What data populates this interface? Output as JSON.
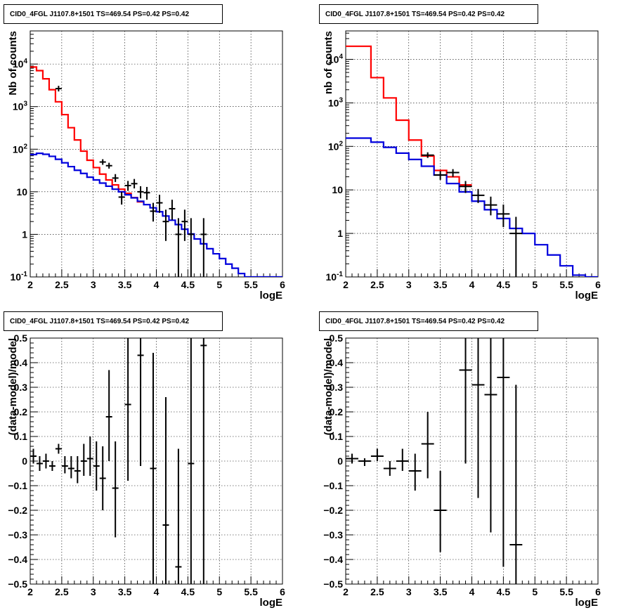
{
  "colors": {
    "model_total": "#ff0000",
    "model_background": "#0000dd",
    "data": "#000000",
    "grid": "#000000"
  },
  "chart_data": [
    {
      "type": "histogram",
      "title": "CID0_4FGL J1107.8+1501 TS=469.54 PS=0.42 PS=0.42",
      "xlabel": "logE",
      "ylabel": "Nb of counts",
      "xlim": [
        2,
        6
      ],
      "ylim": [
        0.1,
        60000
      ],
      "yscale": "log",
      "grid": true,
      "xticks": [
        "2",
        "2.5",
        "3",
        "3.5",
        "4",
        "4.5",
        "5",
        "5.5",
        "6"
      ],
      "yticks": [
        {
          "exp": "-1",
          "base": "10"
        },
        {
          "text": "1"
        },
        {
          "text": "10"
        },
        {
          "exp": "2",
          "base": "10"
        },
        {
          "exp": "3",
          "base": "10"
        },
        {
          "exp": "4",
          "base": "10"
        }
      ],
      "bin_width": 0.1,
      "series": [
        {
          "kind": "step",
          "color": "red",
          "x_edges_start": 2.0,
          "values": [
            8500,
            7000,
            4500,
            2500,
            1300,
            650,
            320,
            165,
            90,
            55,
            37,
            26,
            19,
            14.5,
            11.5,
            9.2,
            7.3,
            5.8
          ]
        },
        {
          "kind": "step",
          "color": "blue",
          "x_edges_start": 2.0,
          "values": [
            75,
            80,
            76,
            68,
            58,
            48,
            39,
            32,
            27,
            22,
            19,
            16,
            13.5,
            11.5,
            10,
            8.5,
            7.2,
            6,
            5,
            4.2,
            3.4,
            2.7,
            2.15,
            1.7,
            1.32,
            1.02,
            0.78,
            0.6,
            0.46,
            0.35,
            0.27,
            0.2,
            0.16,
            0.12,
            0.1,
            0.1,
            0.1,
            0.1,
            0.1,
            0.1
          ]
        },
        {
          "kind": "points",
          "color": "black",
          "points": [
            {
              "x": 2.45,
              "y": 2650
            },
            {
              "x": 3.15,
              "y": 50,
              "lo": 43,
              "hi": 57
            },
            {
              "x": 3.25,
              "y": 41,
              "lo": 35,
              "hi": 48
            },
            {
              "x": 3.35,
              "y": 21,
              "lo": 17,
              "hi": 26
            },
            {
              "x": 3.45,
              "y": 7.5,
              "lo": 5,
              "hi": 10
            },
            {
              "x": 3.55,
              "y": 14,
              "lo": 10.5,
              "hi": 18
            },
            {
              "x": 3.65,
              "y": 15.5,
              "lo": 12,
              "hi": 20
            },
            {
              "x": 3.75,
              "y": 10,
              "lo": 7,
              "hi": 13.5
            },
            {
              "x": 3.85,
              "y": 9.5,
              "lo": 6.5,
              "hi": 13
            },
            {
              "x": 3.95,
              "y": 3.5,
              "lo": 2,
              "hi": 5.5
            },
            {
              "x": 4.05,
              "y": 5.5,
              "lo": 3.2,
              "hi": 8.5
            },
            {
              "x": 4.15,
              "y": 2,
              "lo": 0.7,
              "hi": 3.8
            },
            {
              "x": 4.25,
              "y": 4,
              "lo": 2.2,
              "hi": 6.5
            },
            {
              "x": 4.35,
              "y": 1,
              "lo": 0.1,
              "hi": 2.4
            },
            {
              "x": 4.45,
              "y": 2,
              "lo": 0.7,
              "hi": 3.8
            },
            {
              "x": 4.55,
              "y": 1,
              "lo": 0.1,
              "hi": 2.4
            },
            {
              "x": 4.75,
              "y": 1,
              "lo": 0.1,
              "hi": 2.4
            }
          ]
        }
      ]
    },
    {
      "type": "histogram",
      "title": "CID0_4FGL J1107.8+1501 TS=469.54 PS=0.42 PS=0.42",
      "xlabel": "logE",
      "ylabel": "nb of counts",
      "xlim": [
        2,
        6
      ],
      "ylim": [
        0.1,
        45000
      ],
      "yscale": "log",
      "grid": true,
      "xticks": [
        "2",
        "2.5",
        "3",
        "3.5",
        "4",
        "4.5",
        "5",
        "5.5",
        "6"
      ],
      "yticks": [
        {
          "exp": "-1",
          "base": "10"
        },
        {
          "text": "1"
        },
        {
          "text": "10"
        },
        {
          "exp": "2",
          "base": "10"
        },
        {
          "exp": "3",
          "base": "10"
        },
        {
          "exp": "4",
          "base": "10"
        }
      ],
      "bin_width": 0.2,
      "series": [
        {
          "kind": "step",
          "color": "red",
          "x_edges_start": 2.0,
          "values": [
            20000,
            20000,
            3800,
            1300,
            400,
            140,
            60,
            28,
            20,
            13
          ]
        },
        {
          "kind": "step",
          "color": "blue",
          "x_edges_start": 2.0,
          "values": [
            155,
            155,
            125,
            95,
            70,
            50,
            35,
            22,
            14,
            9,
            5.5,
            3.5,
            2.2,
            1.3,
            1.0,
            0.55,
            0.32,
            0.18,
            0.11,
            0.1
          ]
        },
        {
          "kind": "points",
          "color": "black",
          "points": [
            {
              "x": 3.3,
              "y": 63,
              "lo": 55,
              "hi": 71
            },
            {
              "x": 3.5,
              "y": 22,
              "lo": 17,
              "hi": 27
            },
            {
              "x": 3.7,
              "y": 25,
              "lo": 20,
              "hi": 30
            },
            {
              "x": 3.9,
              "y": 12,
              "lo": 8.5,
              "hi": 16
            },
            {
              "x": 4.1,
              "y": 7.5,
              "lo": 5,
              "hi": 10.5
            },
            {
              "x": 4.3,
              "y": 4.5,
              "lo": 2.6,
              "hi": 7
            },
            {
              "x": 4.5,
              "y": 2.8,
              "lo": 1.4,
              "hi": 4.6
            },
            {
              "x": 4.7,
              "y": 1,
              "lo": 0.1,
              "hi": 2.4
            }
          ]
        }
      ]
    },
    {
      "type": "scatter",
      "title": "CID0_4FGL J1107.8+1501 TS=469.54 PS=0.42 PS=0.42",
      "xlabel": "logE",
      "ylabel": "(data-model)/model",
      "xlim": [
        2,
        6
      ],
      "ylim": [
        -0.5,
        0.5
      ],
      "grid": true,
      "xticks": [
        "2",
        "2.5",
        "3",
        "3.5",
        "4",
        "4.5",
        "5",
        "5.5",
        "6"
      ],
      "yticks": [
        "−0.5",
        "−0.4",
        "−0.3",
        "−0.2",
        "−0.1",
        "0",
        "0.1",
        "0.2",
        "0.3",
        "0.4",
        "0.5"
      ],
      "bin_width": 0.1,
      "series": [
        {
          "kind": "points",
          "color": "black",
          "points": [
            {
              "x": 2.05,
              "y": 0.02,
              "lo": -0.01,
              "hi": 0.05
            },
            {
              "x": 2.15,
              "y": -0.01,
              "lo": -0.04,
              "hi": 0.02
            },
            {
              "x": 2.25,
              "y": 0.0,
              "lo": -0.03,
              "hi": 0.03
            },
            {
              "x": 2.35,
              "y": -0.02,
              "lo": -0.04,
              "hi": 0.0
            },
            {
              "x": 2.45,
              "y": 0.05,
              "lo": 0.03,
              "hi": 0.07
            },
            {
              "x": 2.55,
              "y": -0.02,
              "lo": -0.05,
              "hi": 0.02
            },
            {
              "x": 2.65,
              "y": -0.03,
              "lo": -0.07,
              "hi": 0.02
            },
            {
              "x": 2.75,
              "y": -0.04,
              "lo": -0.09,
              "hi": 0.02
            },
            {
              "x": 2.85,
              "y": 0.0,
              "lo": -0.06,
              "hi": 0.07
            },
            {
              "x": 2.95,
              "y": 0.01,
              "lo": -0.06,
              "hi": 0.1
            },
            {
              "x": 3.05,
              "y": -0.02,
              "lo": -0.12,
              "hi": 0.08
            },
            {
              "x": 3.15,
              "y": -0.07,
              "lo": -0.2,
              "hi": 0.06
            },
            {
              "x": 3.25,
              "y": 0.18,
              "lo": 0.0,
              "hi": 0.37
            },
            {
              "x": 3.35,
              "y": -0.11,
              "lo": -0.31,
              "hi": 0.08
            },
            {
              "x": 3.55,
              "y": 0.23,
              "lo": -0.08,
              "hi": 0.5
            },
            {
              "x": 3.75,
              "y": 0.43,
              "lo": -0.02,
              "hi": 0.5
            },
            {
              "x": 3.95,
              "y": -0.03,
              "lo": -0.5,
              "hi": 0.44
            },
            {
              "x": 4.15,
              "y": -0.26,
              "lo": -0.5,
              "hi": 0.26
            },
            {
              "x": 4.35,
              "y": -0.43,
              "lo": -0.5,
              "hi": 0.05
            },
            {
              "x": 4.55,
              "y": -0.01,
              "lo": -0.5,
              "hi": 0.5
            },
            {
              "x": 4.75,
              "y": 0.47,
              "lo": -0.5,
              "hi": 0.5
            }
          ]
        }
      ]
    },
    {
      "type": "scatter",
      "title": "CID0_4FGL J1107.8+1501 TS=469.54 PS=0.42 PS=0.42",
      "xlabel": "logE",
      "ylabel": "(data-model)/model",
      "xlim": [
        2,
        6
      ],
      "ylim": [
        -0.5,
        0.5
      ],
      "grid": true,
      "xticks": [
        "2",
        "2.5",
        "3",
        "3.5",
        "4",
        "4.5",
        "5",
        "5.5",
        "6"
      ],
      "yticks": [
        "−0.5",
        "−0.4",
        "−0.3",
        "−0.2",
        "−0.1",
        "0",
        "0.1",
        "0.2",
        "0.3",
        "0.4",
        "0.5"
      ],
      "bin_width": 0.2,
      "series": [
        {
          "kind": "points",
          "color": "black",
          "points": [
            {
              "x": 2.1,
              "y": 0.01,
              "lo": -0.01,
              "hi": 0.03
            },
            {
              "x": 2.3,
              "y": 0.0,
              "lo": -0.02,
              "hi": 0.01
            },
            {
              "x": 2.5,
              "y": 0.02,
              "lo": 0.0,
              "hi": 0.05
            },
            {
              "x": 2.7,
              "y": -0.03,
              "lo": -0.06,
              "hi": 0.0
            },
            {
              "x": 2.9,
              "y": 0.0,
              "lo": -0.04,
              "hi": 0.05
            },
            {
              "x": 3.1,
              "y": -0.04,
              "lo": -0.12,
              "hi": 0.03
            },
            {
              "x": 3.3,
              "y": 0.07,
              "lo": -0.07,
              "hi": 0.2
            },
            {
              "x": 3.5,
              "y": -0.2,
              "lo": -0.37,
              "hi": -0.04
            },
            {
              "x": 3.9,
              "y": 0.37,
              "lo": -0.01,
              "hi": 0.5
            },
            {
              "x": 4.1,
              "y": 0.31,
              "lo": -0.15,
              "hi": 0.5
            },
            {
              "x": 4.3,
              "y": 0.27,
              "lo": -0.29,
              "hi": 0.5
            },
            {
              "x": 4.5,
              "y": 0.34,
              "lo": -0.43,
              "hi": 0.5
            },
            {
              "x": 4.7,
              "y": -0.34,
              "lo": -0.5,
              "hi": 0.31
            }
          ]
        }
      ]
    }
  ]
}
